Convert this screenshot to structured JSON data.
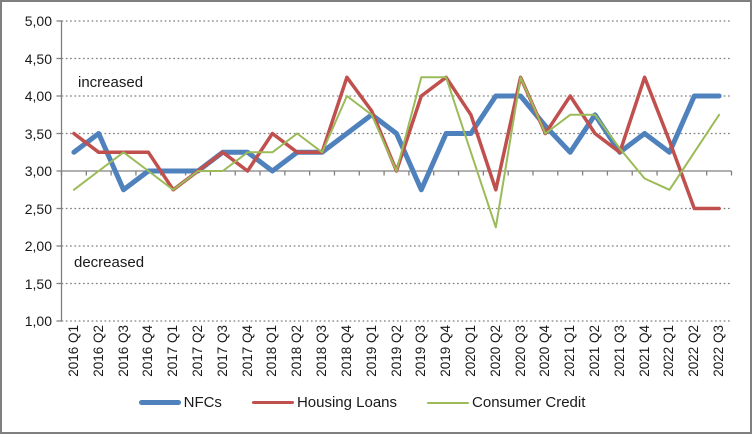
{
  "chart_data": {
    "type": "line",
    "title": "",
    "categories": [
      "2016 Q1",
      "2016 Q2",
      "2016 Q3",
      "2016 Q4",
      "2017 Q1",
      "2017 Q2",
      "2017 Q3",
      "2017 Q4",
      "2018 Q1",
      "2018 Q2",
      "2018 Q3",
      "2018 Q4",
      "2019 Q1",
      "2019 Q2",
      "2019 Q3",
      "2019 Q4",
      "2020 Q1",
      "2020 Q2",
      "2020 Q3",
      "2020 Q4",
      "2021 Q1",
      "2021 Q2",
      "2021 Q3",
      "2021 Q4",
      "2022 Q1",
      "2022 Q2",
      "2022 Q3"
    ],
    "series": [
      {
        "name": "NFCs",
        "color": "#4F81BD",
        "stroke_width": 5,
        "values": [
          3.25,
          3.5,
          2.75,
          3.0,
          3.0,
          3.0,
          3.25,
          3.25,
          3.0,
          3.25,
          3.25,
          3.5,
          3.75,
          3.5,
          2.75,
          3.5,
          3.5,
          4.0,
          4.0,
          3.6,
          3.25,
          3.75,
          3.25,
          3.5,
          3.25,
          4.0,
          4.0
        ]
      },
      {
        "name": "Housing Loans",
        "color": "#C0504D",
        "stroke_width": 3.5,
        "values": [
          3.5,
          3.25,
          3.25,
          3.25,
          2.75,
          3.0,
          3.25,
          3.0,
          3.5,
          3.25,
          3.25,
          4.25,
          3.8,
          3.0,
          4.0,
          4.25,
          3.75,
          2.75,
          4.25,
          3.5,
          4.0,
          3.5,
          3.25,
          4.25,
          3.4,
          2.5,
          2.5
        ]
      },
      {
        "name": "Consumer Credit",
        "color": "#9BBB59",
        "stroke_width": 2,
        "values": [
          2.75,
          3.0,
          3.25,
          3.0,
          2.75,
          3.0,
          3.0,
          3.25,
          3.25,
          3.5,
          3.25,
          4.0,
          3.75,
          3.0,
          4.25,
          4.25,
          3.25,
          2.25,
          4.25,
          3.5,
          3.75,
          3.75,
          3.3,
          2.9,
          2.75,
          3.25,
          3.75
        ]
      }
    ],
    "ylim": [
      1.0,
      5.0
    ],
    "ytick_step": 0.5,
    "ytick_labels": [
      "5,00",
      "4,50",
      "4,00",
      "3,50",
      "3,00",
      "2,50",
      "2,00",
      "1,50",
      "1,00"
    ],
    "axis_cross_value": 3.0,
    "grid": "horizontal-dotted",
    "legend_position": "bottom",
    "annotations": [
      {
        "text": "increased",
        "x": 76,
        "y": 72
      },
      {
        "text": "decreased",
        "x": 72,
        "y": 252
      }
    ],
    "axis_color": "#808080",
    "gridline_color": "#7F7F7F"
  },
  "annotations": {
    "increased": "increased",
    "decreased": "decreased"
  }
}
